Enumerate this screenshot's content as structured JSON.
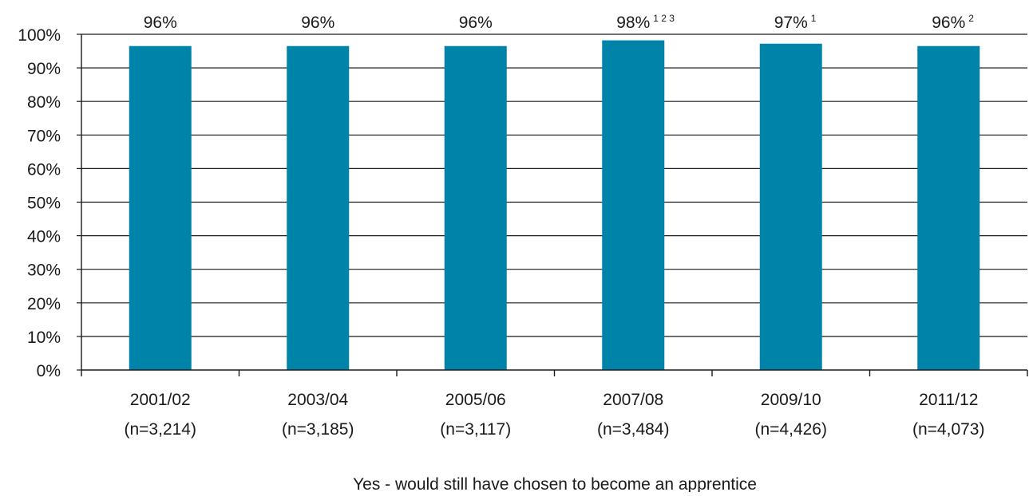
{
  "chart_data": {
    "type": "bar",
    "categories": [
      {
        "period": "2001/02",
        "n": "(n=3,214)"
      },
      {
        "period": "2003/04",
        "n": "(n=3,185)"
      },
      {
        "period": "2005/06",
        "n": "(n=3,117)"
      },
      {
        "period": "2007/08",
        "n": "(n=3,484)"
      },
      {
        "period": "2009/10",
        "n": "(n=4,426)"
      },
      {
        "period": "2011/12",
        "n": "(n=4,073)"
      }
    ],
    "values": [
      96.5,
      96.5,
      96.5,
      98.2,
      97.2,
      96.5
    ],
    "data_labels": [
      "96%",
      "96%",
      "96%",
      "98%",
      "97%",
      "96%"
    ],
    "superscripts": [
      "",
      "",
      "",
      "1 2 3",
      "1",
      "2"
    ],
    "xlabel": "Yes - would still have chosen to become an apprentice",
    "ylabel": "",
    "ylim": [
      0,
      100
    ],
    "yticks": [
      "0%",
      "10%",
      "20%",
      "30%",
      "40%",
      "50%",
      "60%",
      "70%",
      "80%",
      "90%",
      "100%"
    ],
    "grid": true,
    "legend": "none",
    "bar_color": "#0083a8"
  }
}
